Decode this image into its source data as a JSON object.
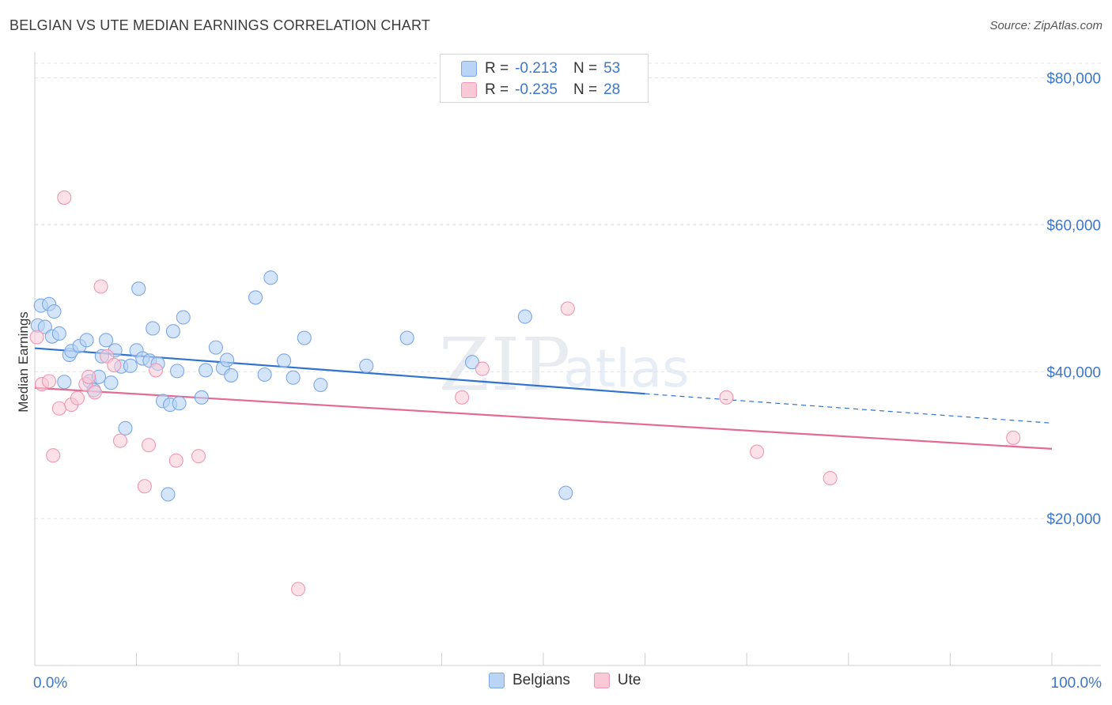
{
  "title": "BELGIAN VS UTE MEDIAN EARNINGS CORRELATION CHART",
  "source": "Source: ZipAtlas.com",
  "legend_top": {
    "rows": [
      {
        "r_label": "R =",
        "r_value": "-0.213",
        "n_label": "N =",
        "n_value": "53"
      },
      {
        "r_label": "R =",
        "r_value": "-0.235",
        "n_label": "N =",
        "n_value": "28"
      }
    ]
  },
  "legend_bottom": {
    "items": [
      "Belgians",
      "Ute"
    ]
  },
  "colors": {
    "belgians_fill": "#b9d4f5",
    "belgians_stroke": "#7aa8e6",
    "belgians_line": "#2f73cf",
    "ute_fill": "#f9c9d7",
    "ute_stroke": "#ee98b3",
    "ute_line": "#e46a94",
    "axis_label": "#3c77cc",
    "grid": "#e3e3e3"
  },
  "chart_data": {
    "type": "scatter",
    "title": "BELGIAN VS UTE MEDIAN EARNINGS CORRELATION CHART",
    "xlabel": "",
    "ylabel": "Median Earnings",
    "xlim": [
      0,
      100
    ],
    "ylim": [
      0,
      82000
    ],
    "x_tick_labels": [
      "0.0%",
      "100.0%"
    ],
    "y_ticks": [
      20000,
      40000,
      60000,
      80000
    ],
    "y_tick_labels": [
      "$20,000",
      "$40,000",
      "$60,000",
      "$80,000"
    ],
    "grid": "horizontal dashed",
    "legend_placement": "top-center",
    "series": [
      {
        "name": "Belgians",
        "points": [
          [
            0.3,
            46300
          ],
          [
            0.6,
            49000
          ],
          [
            1.0,
            46100
          ],
          [
            1.4,
            49200
          ],
          [
            1.7,
            44800
          ],
          [
            1.9,
            48200
          ],
          [
            2.4,
            45200
          ],
          [
            2.9,
            38600
          ],
          [
            3.4,
            42300
          ],
          [
            3.6,
            42800
          ],
          [
            4.4,
            43500
          ],
          [
            5.1,
            44300
          ],
          [
            5.4,
            38700
          ],
          [
            5.8,
            37500
          ],
          [
            6.3,
            39300
          ],
          [
            6.6,
            42100
          ],
          [
            7.0,
            44300
          ],
          [
            7.5,
            38500
          ],
          [
            7.9,
            42900
          ],
          [
            8.5,
            40700
          ],
          [
            8.9,
            32300
          ],
          [
            9.4,
            40800
          ],
          [
            10.0,
            42900
          ],
          [
            10.2,
            51300
          ],
          [
            10.6,
            41800
          ],
          [
            11.3,
            41500
          ],
          [
            11.6,
            45900
          ],
          [
            12.1,
            41100
          ],
          [
            12.6,
            36000
          ],
          [
            13.1,
            23300
          ],
          [
            13.3,
            35500
          ],
          [
            13.6,
            45500
          ],
          [
            14.0,
            40100
          ],
          [
            14.2,
            35700
          ],
          [
            14.6,
            47400
          ],
          [
            16.4,
            36500
          ],
          [
            16.8,
            40200
          ],
          [
            17.8,
            43300
          ],
          [
            18.5,
            40500
          ],
          [
            18.9,
            41600
          ],
          [
            19.3,
            39500
          ],
          [
            21.7,
            50100
          ],
          [
            22.6,
            39600
          ],
          [
            23.2,
            52800
          ],
          [
            24.5,
            41500
          ],
          [
            25.4,
            39200
          ],
          [
            26.5,
            44600
          ],
          [
            28.1,
            38200
          ],
          [
            32.6,
            40800
          ],
          [
            36.6,
            44600
          ],
          [
            43.0,
            41300
          ],
          [
            48.2,
            47500
          ],
          [
            52.2,
            23500
          ]
        ],
        "trend": {
          "x": [
            0,
            60
          ],
          "y": [
            43200,
            37000
          ],
          "dashed_extension": {
            "x": [
              60,
              100
            ],
            "y": [
              37000,
              33000
            ]
          }
        }
      },
      {
        "name": "Ute",
        "points": [
          [
            0.2,
            44700
          ],
          [
            0.7,
            38300
          ],
          [
            1.4,
            38700
          ],
          [
            1.8,
            28600
          ],
          [
            2.4,
            35000
          ],
          [
            2.9,
            63700
          ],
          [
            3.6,
            35500
          ],
          [
            4.2,
            36400
          ],
          [
            5.0,
            38300
          ],
          [
            5.3,
            39300
          ],
          [
            5.9,
            37200
          ],
          [
            6.5,
            51600
          ],
          [
            7.1,
            42100
          ],
          [
            7.8,
            40900
          ],
          [
            8.4,
            30600
          ],
          [
            10.8,
            24400
          ],
          [
            11.2,
            30000
          ],
          [
            11.9,
            40200
          ],
          [
            13.9,
            27900
          ],
          [
            16.1,
            28500
          ],
          [
            25.9,
            10400
          ],
          [
            42.0,
            36500
          ],
          [
            44.0,
            40400
          ],
          [
            52.4,
            48600
          ],
          [
            68.0,
            36500
          ],
          [
            71.0,
            29100
          ],
          [
            78.2,
            25500
          ],
          [
            96.2,
            31000
          ]
        ],
        "trend": {
          "x": [
            0,
            100
          ],
          "y": [
            37800,
            29500
          ]
        }
      }
    ]
  }
}
